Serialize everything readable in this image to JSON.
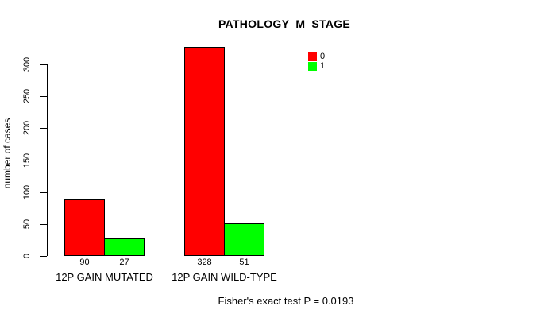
{
  "title": "PATHOLOGY_M_STAGE",
  "footer": "Fisher's exact test P = 0.0193",
  "colors": {
    "series0": "#ff0000",
    "series1": "#00ff00",
    "axis": "#000000",
    "background": "#ffffff",
    "text": "#000000"
  },
  "chart_data": {
    "type": "bar",
    "title": "PATHOLOGY_M_STAGE",
    "xlabel": "",
    "ylabel": "number of cases",
    "categories": [
      "12P GAIN MUTATED",
      "12P GAIN WILD-TYPE"
    ],
    "series": [
      {
        "name": "0",
        "color": "#ff0000",
        "values": [
          90,
          328
        ]
      },
      {
        "name": "1",
        "color": "#00ff00",
        "values": [
          27,
          51
        ]
      }
    ],
    "value_labels": [
      [
        "90",
        "328"
      ],
      [
        "27",
        "51"
      ]
    ],
    "yticks": [
      0,
      50,
      100,
      150,
      200,
      250,
      300
    ],
    "ylim": [
      0,
      330
    ],
    "grid": false,
    "legend_position": "top-right",
    "legend_entries": [
      "0",
      "1"
    ],
    "annotation": "Fisher's exact test P = 0.0193"
  }
}
